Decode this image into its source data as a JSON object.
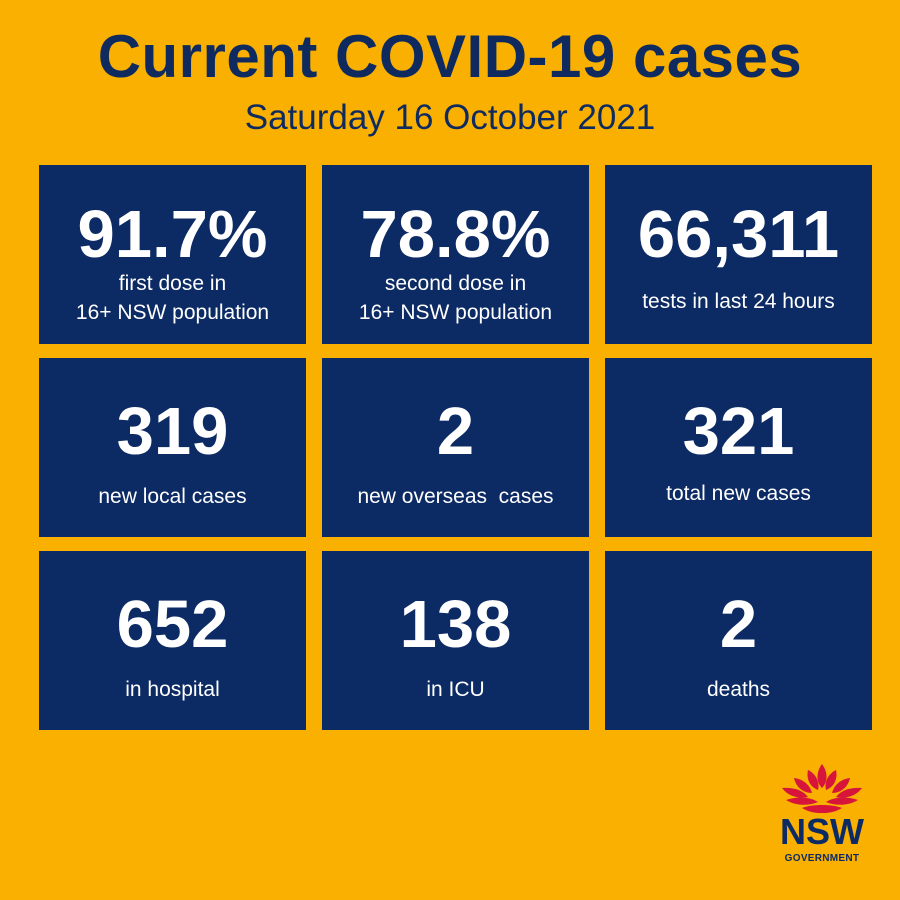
{
  "title": "Current COVID-19 cases",
  "date": "Saturday 16 October 2021",
  "stats": [
    {
      "value": "91.7%",
      "label_line1": "first dose in",
      "label_line2": "16+ NSW population"
    },
    {
      "value": "78.8%",
      "label_line1": "second dose in",
      "label_line2": "16+ NSW population"
    },
    {
      "value": "66,311",
      "label": "tests in last 24 hours"
    },
    {
      "value": "319",
      "label": "new local cases"
    },
    {
      "value": "2",
      "label": "new overseas  cases"
    },
    {
      "value": "321",
      "label": "total new cases"
    },
    {
      "value": "652",
      "label": "in hospital"
    },
    {
      "value": "138",
      "label": "in ICU"
    },
    {
      "value": "2",
      "label": "deaths"
    }
  ],
  "logo": {
    "name": "waratah-logo-icon",
    "word": "NSW",
    "sub": "GOVERNMENT"
  },
  "colors": {
    "background": "#f9b000",
    "tile": "#0c2a63",
    "title_text": "#0f2a5f",
    "logo_red": "#d7153a"
  }
}
